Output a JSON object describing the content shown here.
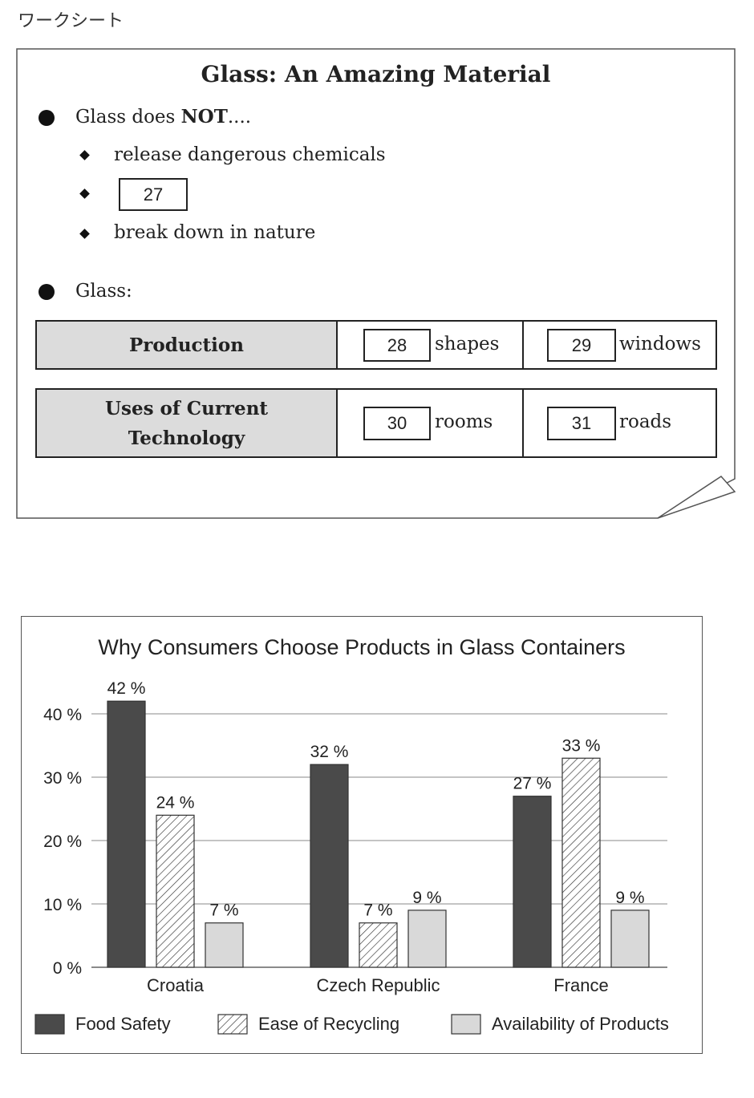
{
  "worksheet_label": "ワークシート",
  "sheet": {
    "title": "Glass: An Amazing Material",
    "bullet1": {
      "prefix": "Glass does ",
      "emphasis": "NOT",
      "suffix": "...."
    },
    "sub_items": [
      {
        "text": "release dangerous chemicals"
      },
      {
        "answer_number": "27"
      },
      {
        "text": "break down in nature"
      }
    ],
    "bullet2": "Glass:",
    "table": [
      {
        "header_line1": "Production",
        "header_line2": "",
        "cells": [
          {
            "number": "28",
            "word": "shapes"
          },
          {
            "number": "29",
            "word": "windows"
          }
        ]
      },
      {
        "header_line1": "Uses of Current",
        "header_line2": "Technology",
        "cells": [
          {
            "number": "30",
            "word": "rooms"
          },
          {
            "number": "31",
            "word": "roads"
          }
        ]
      }
    ]
  },
  "chart_data": {
    "type": "bar",
    "title": "Why Consumers Choose Products in Glass Containers",
    "categories": [
      "Croatia",
      "Czech Republic",
      "France"
    ],
    "series": [
      {
        "name": "Food Safety",
        "values": [
          42,
          32,
          27
        ],
        "fill": "#4a4a4a",
        "pattern": "solid"
      },
      {
        "name": "Ease of Recycling",
        "values": [
          24,
          7,
          33
        ],
        "fill": "#ffffff",
        "pattern": "hatch"
      },
      {
        "name": "Availability of Products",
        "values": [
          7,
          9,
          9
        ],
        "fill": "#d9d9d9",
        "pattern": "solid"
      }
    ],
    "yticks": [
      0,
      10,
      20,
      30,
      40
    ],
    "ytick_labels": [
      "0 %",
      "10 %",
      "20 %",
      "30 %",
      "40 %"
    ],
    "value_suffix": " %",
    "ylim": [
      0,
      42
    ],
    "grid": true,
    "legend": "bottom",
    "xlabel": "",
    "ylabel": ""
  }
}
